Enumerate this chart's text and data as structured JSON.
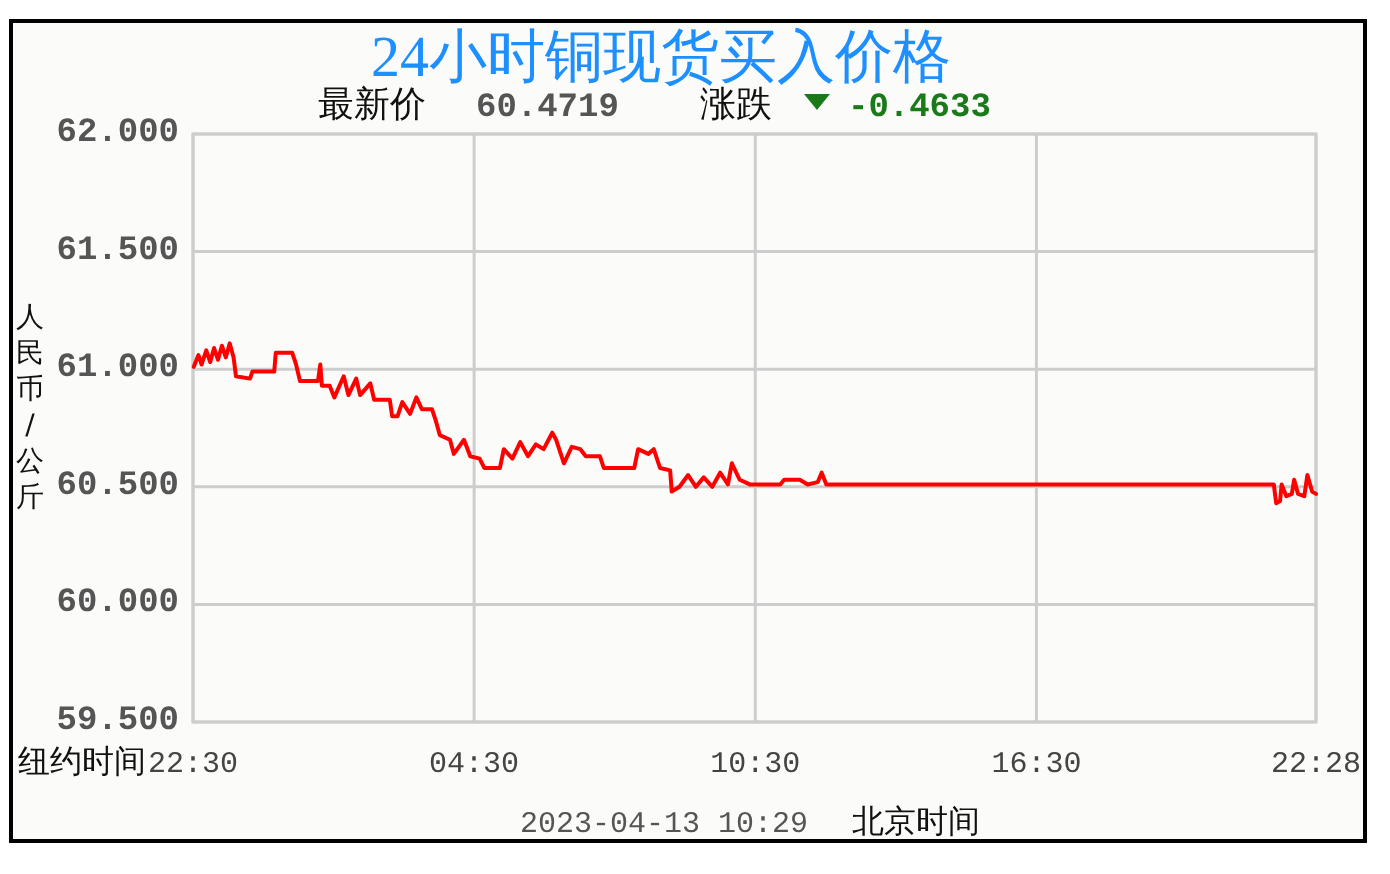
{
  "chart_data": {
    "type": "line",
    "title": "24小时铜现货买入价格",
    "xlabel": "纽约时间",
    "ylabel": "人民币/公斤",
    "annotations": [
      "最新价",
      "60.4719",
      "涨跌",
      "-0.4633",
      "2023-04-13 10:29",
      "北京时间"
    ],
    "x": [
      "2023-04-11T22:31",
      "2023-04-11T22:37",
      "2023-04-11T22:41",
      "2023-04-11T22:47",
      "2023-04-11T22:52",
      "2023-04-11T22:57",
      "2023-04-11T23:02",
      "2023-04-11T23:07",
      "2023-04-11T23:12",
      "2023-04-11T23:17",
      "2023-04-11T23:22",
      "2023-04-11T23:25",
      "2023-04-11T23:43",
      "2023-04-11T23:46",
      "2023-04-12T00:14",
      "2023-04-12T00:16",
      "2023-04-12T00:37",
      "2023-04-12T00:42",
      "2023-04-12T00:47",
      "2023-04-12T01:10",
      "2023-04-12T01:13",
      "2023-04-12T01:15",
      "2023-04-12T01:25",
      "2023-04-12T01:31",
      "2023-04-12T01:43",
      "2023-04-12T01:49",
      "2023-04-12T01:59",
      "2023-04-12T02:04",
      "2023-04-12T02:17",
      "2023-04-12T02:22",
      "2023-04-12T02:42",
      "2023-04-12T02:45",
      "2023-04-12T02:52",
      "2023-04-12T02:58",
      "2023-04-12T03:08",
      "2023-04-12T03:16",
      "2023-04-12T03:23",
      "2023-04-12T03:36",
      "2023-04-12T03:41",
      "2023-04-12T03:46",
      "2023-04-12T03:59",
      "2023-04-12T04:04",
      "2023-04-12T04:17",
      "2023-04-12T04:25",
      "2023-04-12T04:37",
      "2023-04-12T04:43",
      "2023-04-12T05:03",
      "2023-04-12T05:08",
      "2023-04-12T05:19",
      "2023-04-12T05:29",
      "2023-04-12T05:39",
      "2023-04-12T05:49",
      "2023-04-12T05:59",
      "2023-04-12T06:10",
      "2023-04-12T06:15",
      "2023-04-12T06:25",
      "2023-04-12T06:35",
      "2023-04-12T06:46",
      "2023-04-12T06:53",
      "2023-04-12T07:11",
      "2023-04-12T07:16",
      "2023-04-12T07:55",
      "2023-04-12T08:00",
      "2023-04-12T08:13",
      "2023-04-12T08:20",
      "2023-04-12T08:28",
      "2023-04-12T08:41",
      "2023-04-12T08:43",
      "2023-04-12T08:53",
      "2023-04-12T09:04",
      "2023-04-12T09:14",
      "2023-04-12T09:24",
      "2023-04-12T09:35",
      "2023-04-12T09:45",
      "2023-04-12T09:55",
      "2023-04-12T10:00",
      "2023-04-12T10:10",
      "2023-04-12T10:23",
      "2023-04-12T11:02",
      "2023-04-12T11:07",
      "2023-04-12T11:27",
      "2023-04-12T11:37",
      "2023-04-12T11:50",
      "2023-04-12T11:55",
      "2023-04-12T12:01",
      "2023-04-12T21:34",
      "2023-04-12T21:37",
      "2023-04-12T21:42",
      "2023-04-12T21:44",
      "2023-04-12T21:50",
      "2023-04-12T21:57",
      "2023-04-12T22:00",
      "2023-04-12T22:05",
      "2023-04-12T22:13",
      "2023-04-12T22:17",
      "2023-04-12T22:23",
      "2023-04-12T22:28"
    ],
    "series": [
      {
        "color": "#ff0000",
        "values": [
          61.01,
          61.06,
          61.02,
          61.08,
          61.03,
          61.09,
          61.04,
          61.1,
          61.05,
          61.11,
          61.05,
          60.97,
          60.96,
          60.99,
          60.99,
          61.07,
          61.07,
          61.02,
          60.95,
          60.95,
          61.02,
          60.93,
          60.93,
          60.88,
          60.97,
          60.89,
          60.96,
          60.89,
          60.94,
          60.87,
          60.87,
          60.8,
          60.8,
          60.86,
          60.81,
          60.88,
          60.83,
          60.83,
          60.78,
          60.72,
          60.7,
          60.64,
          60.7,
          60.63,
          60.62,
          60.58,
          60.58,
          60.66,
          60.62,
          60.69,
          60.63,
          60.68,
          60.66,
          60.73,
          60.7,
          60.6,
          60.67,
          60.66,
          60.63,
          60.63,
          60.58,
          60.58,
          60.66,
          60.64,
          60.66,
          60.58,
          60.57,
          60.48,
          60.5,
          60.55,
          60.5,
          60.54,
          60.5,
          60.56,
          60.51,
          60.6,
          60.53,
          60.51,
          60.51,
          60.53,
          60.53,
          60.51,
          60.52,
          60.56,
          60.51,
          60.51,
          60.43,
          60.44,
          60.51,
          60.46,
          60.47,
          60.53,
          60.47,
          60.46,
          60.55,
          60.48,
          60.47
        ]
      }
    ],
    "xlim": [
      "2023-04-11T22:30",
      "2023-04-12T22:28"
    ],
    "xticks": [
      {
        "value": "2023-04-11T22:30",
        "label": "22:30"
      },
      {
        "value": "2023-04-12T04:30",
        "label": "04:30"
      },
      {
        "value": "2023-04-12T10:30",
        "label": "10:30"
      },
      {
        "value": "2023-04-12T16:30",
        "label": "16:30"
      },
      {
        "value": "2023-04-12T22:28",
        "label": "22:28"
      }
    ],
    "ylim": [
      59.5,
      62
    ],
    "yticks": [
      {
        "value": 59.5,
        "label": "59.500"
      },
      {
        "value": 60,
        "label": "60.000"
      },
      {
        "value": 60.5,
        "label": "60.500"
      },
      {
        "value": 61,
        "label": "61.000"
      },
      {
        "value": 61.5,
        "label": "61.500"
      },
      {
        "value": 62,
        "label": "62.000"
      }
    ],
    "grid": true,
    "line_style": "solid"
  }
}
